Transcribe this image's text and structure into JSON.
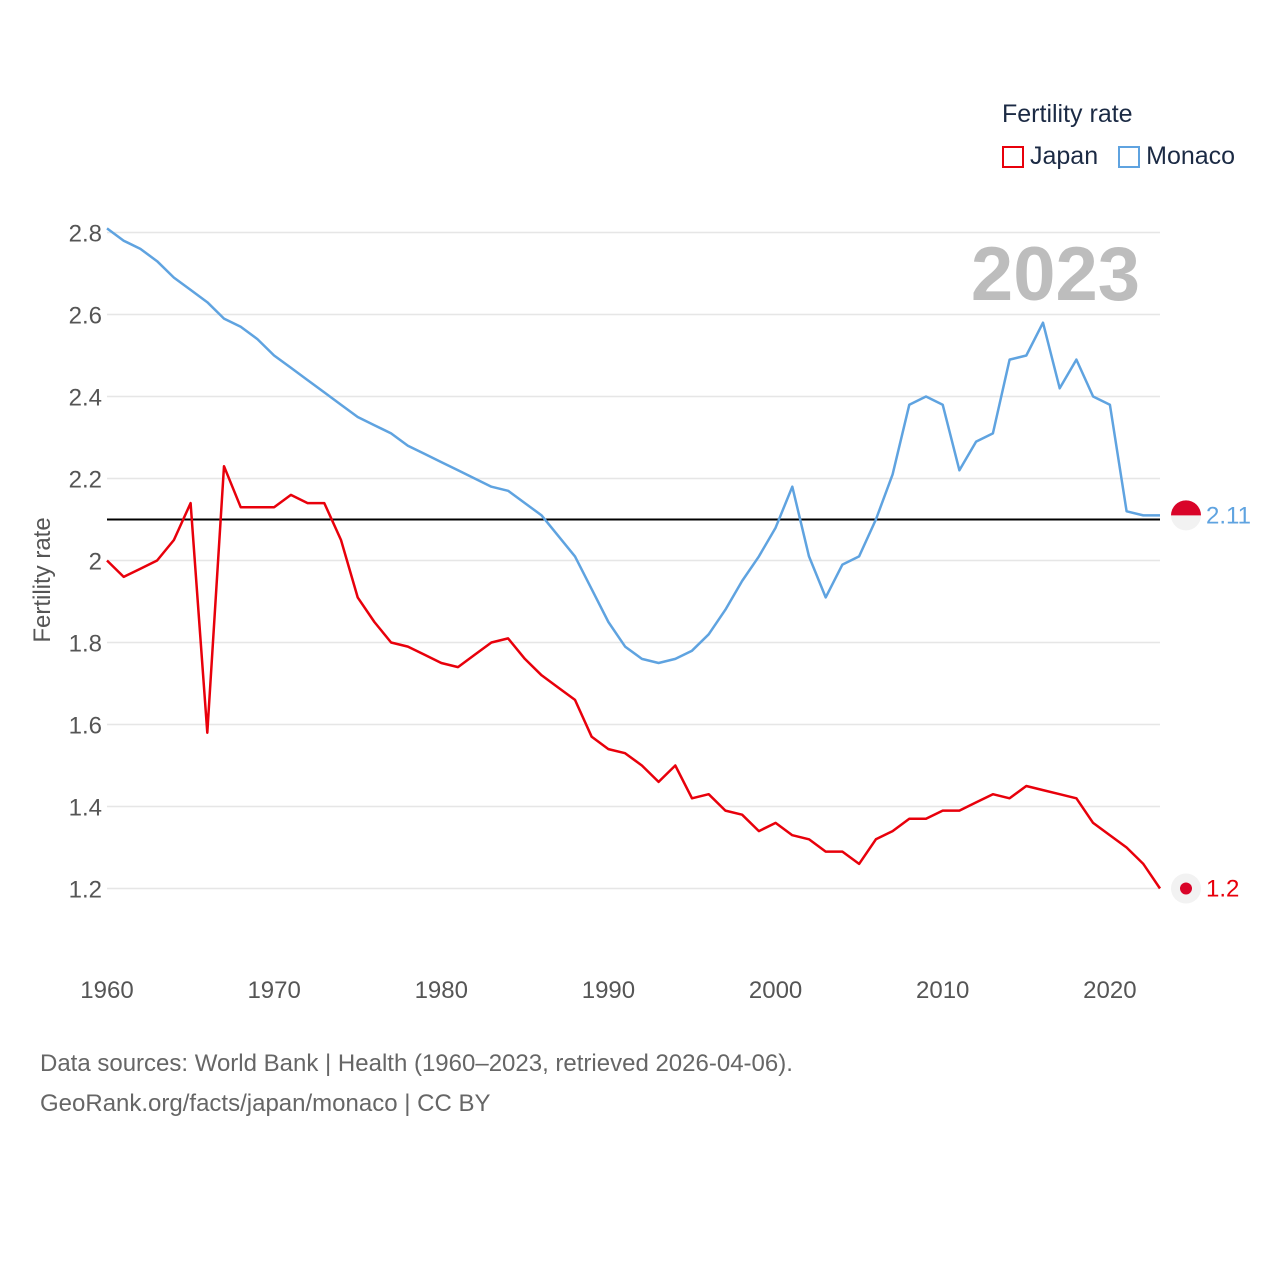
{
  "legend": {
    "title": "Fertility rate",
    "japan_label": "Japan",
    "monaco_label": "Monaco"
  },
  "source": {
    "line1": "Data sources: World Bank | Health (1960–2023, retrieved 2026-04-06).",
    "line2": "GeoRank.org/facts/japan/monaco | CC BY"
  },
  "chart_data": {
    "type": "line",
    "title": "Fertility rate",
    "year_label": "2023",
    "xlabel": "",
    "ylabel": "Fertility rate",
    "xlim": [
      1960,
      2023
    ],
    "ylim": [
      1.05,
      2.85
    ],
    "x_ticks": [
      1960,
      1970,
      1980,
      1990,
      2000,
      2010,
      2020
    ],
    "y_ticks": [
      1.2,
      1.4,
      1.6,
      1.8,
      2,
      2.2,
      2.4,
      2.6,
      2.8
    ],
    "reference_line": 2.1,
    "x": [
      1960,
      1961,
      1962,
      1963,
      1964,
      1965,
      1966,
      1967,
      1968,
      1969,
      1970,
      1971,
      1972,
      1973,
      1974,
      1975,
      1976,
      1977,
      1978,
      1979,
      1980,
      1981,
      1982,
      1983,
      1984,
      1985,
      1986,
      1987,
      1988,
      1989,
      1990,
      1991,
      1992,
      1993,
      1994,
      1995,
      1996,
      1997,
      1998,
      1999,
      2000,
      2001,
      2002,
      2003,
      2004,
      2005,
      2006,
      2007,
      2008,
      2009,
      2010,
      2011,
      2012,
      2013,
      2014,
      2015,
      2016,
      2017,
      2018,
      2019,
      2020,
      2021,
      2022,
      2023
    ],
    "series": [
      {
        "name": "Japan",
        "color": "#e8000b",
        "end_label": "1.2",
        "values": [
          2.0,
          1.96,
          1.98,
          2.0,
          2.05,
          2.14,
          1.58,
          2.23,
          2.13,
          2.13,
          2.13,
          2.16,
          2.14,
          2.14,
          2.05,
          1.91,
          1.85,
          1.8,
          1.79,
          1.77,
          1.75,
          1.74,
          1.77,
          1.8,
          1.81,
          1.76,
          1.72,
          1.69,
          1.66,
          1.57,
          1.54,
          1.53,
          1.5,
          1.46,
          1.5,
          1.42,
          1.43,
          1.39,
          1.38,
          1.34,
          1.36,
          1.33,
          1.32,
          1.29,
          1.29,
          1.26,
          1.32,
          1.34,
          1.37,
          1.37,
          1.39,
          1.39,
          1.41,
          1.43,
          1.42,
          1.45,
          1.44,
          1.43,
          1.42,
          1.36,
          1.33,
          1.3,
          1.26,
          1.2
        ]
      },
      {
        "name": "Monaco",
        "color": "#5fa3e0",
        "end_label": "2.11",
        "values": [
          2.81,
          2.78,
          2.76,
          2.73,
          2.69,
          2.66,
          2.63,
          2.59,
          2.57,
          2.54,
          2.5,
          2.47,
          2.44,
          2.41,
          2.38,
          2.35,
          2.33,
          2.31,
          2.28,
          2.26,
          2.24,
          2.22,
          2.2,
          2.18,
          2.17,
          2.14,
          2.11,
          2.06,
          2.01,
          1.93,
          1.85,
          1.79,
          1.76,
          1.75,
          1.76,
          1.78,
          1.82,
          1.88,
          1.95,
          2.01,
          2.08,
          2.18,
          2.01,
          1.91,
          1.99,
          2.01,
          2.1,
          2.21,
          2.38,
          2.4,
          2.38,
          2.22,
          2.29,
          2.31,
          2.49,
          2.5,
          2.58,
          2.42,
          2.49,
          2.4,
          2.38,
          2.12,
          2.11,
          2.11
        ]
      }
    ]
  }
}
